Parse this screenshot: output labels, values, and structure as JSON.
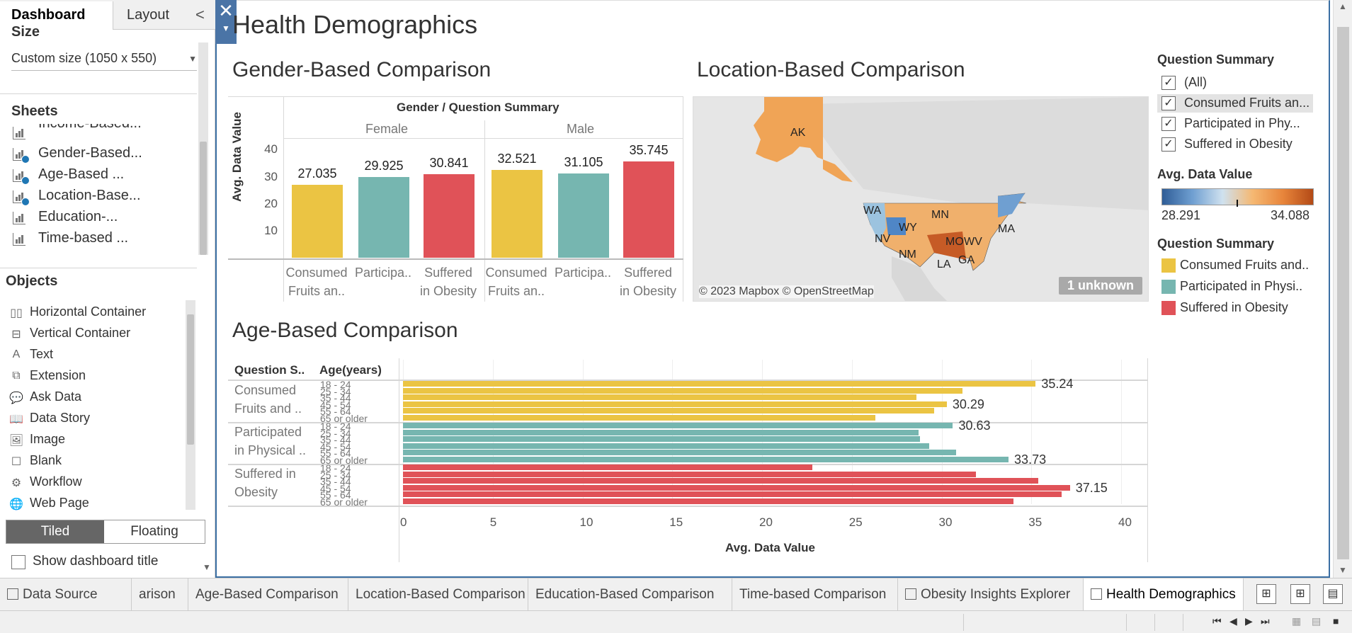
{
  "left_panel": {
    "tabs": {
      "dashboard": "Dashboard",
      "layout": "Layout"
    },
    "collapse_glyph": "<",
    "size": {
      "title": "Size",
      "value": "Custom size (1050 x 550)"
    },
    "sheets": {
      "title": "Sheets",
      "items": [
        {
          "label": "Income-Based..."
        },
        {
          "label": "Gender-Based..."
        },
        {
          "label": "Age-Based ..."
        },
        {
          "label": "Location-Base..."
        },
        {
          "label": "Education-..."
        },
        {
          "label": "Time-based ..."
        }
      ]
    },
    "objects": {
      "title": "Objects",
      "items": [
        {
          "label": "Horizontal Container",
          "icon": "horizontal-container-icon",
          "glyph": "▯▯"
        },
        {
          "label": "Vertical Container",
          "icon": "vertical-container-icon",
          "glyph": "⊟"
        },
        {
          "label": "Text",
          "icon": "text-icon",
          "glyph": "A"
        },
        {
          "label": "Extension",
          "icon": "extension-icon",
          "glyph": "⧉"
        },
        {
          "label": "Ask Data",
          "icon": "ask-data-icon",
          "glyph": "💬"
        },
        {
          "label": "Data Story",
          "icon": "data-story-icon",
          "glyph": "📖"
        },
        {
          "label": "Image",
          "icon": "image-icon",
          "glyph": "🖼"
        },
        {
          "label": "Blank",
          "icon": "blank-icon",
          "glyph": "☐"
        },
        {
          "label": "Workflow",
          "icon": "workflow-icon",
          "glyph": "⚙"
        },
        {
          "label": "Web Page",
          "icon": "web-page-icon",
          "glyph": "🌐"
        }
      ]
    },
    "layout_toggle": {
      "tiled": "Tiled",
      "floating": "Floating"
    },
    "show_title": "Show dashboard title"
  },
  "dashboard": {
    "title": "Health Demographics",
    "gender_heading": "Gender-Based Comparison",
    "location_heading": "Location-Based Comparison",
    "age_heading": "Age-Based Comparison"
  },
  "colors": {
    "yellow": "#EBC443",
    "teal": "#76B6B0",
    "red": "#E05258",
    "accent": "#4A74A6"
  },
  "chart_data": [
    {
      "type": "bar",
      "title": "Gender-Based Comparison",
      "header": "Gender / Question Summary",
      "ylabel": "Avg. Data Value",
      "yticks": [
        10,
        20,
        30,
        40
      ],
      "ylim": [
        0,
        43
      ],
      "groups": [
        "Female",
        "Male"
      ],
      "categories": [
        {
          "line1": "Consumed",
          "line2": "Fruits an.."
        },
        {
          "line1": "Participa..",
          "line2": ""
        },
        {
          "line1": "Suffered",
          "line2": "in Obesity"
        }
      ],
      "values": [
        {
          "group": "Female",
          "category": "Consumed Fruits an..",
          "value": 27.035,
          "label": "27.035",
          "color": "yellow"
        },
        {
          "group": "Female",
          "category": "Participa..",
          "value": 29.925,
          "label": "29.925",
          "color": "teal"
        },
        {
          "group": "Female",
          "category": "Suffered in Obesity",
          "value": 30.841,
          "label": "30.841",
          "color": "red"
        },
        {
          "group": "Male",
          "category": "Consumed Fruits an..",
          "value": 32.521,
          "label": "32.521",
          "color": "yellow"
        },
        {
          "group": "Male",
          "category": "Participa..",
          "value": 31.105,
          "label": "31.105",
          "color": "teal"
        },
        {
          "group": "Male",
          "category": "Suffered in Obesity",
          "value": 35.745,
          "label": "35.745",
          "color": "red"
        }
      ]
    },
    {
      "type": "heatmap",
      "title": "Location-Based Comparison",
      "attribution": "© 2023 Mapbox © OpenStreetMap",
      "unknown_badge": "1 unknown",
      "state_labels": [
        "AK",
        "WA",
        "MN",
        "WY",
        "NV",
        "NM",
        "MO",
        "MA",
        "WV",
        "LA",
        "GA"
      ]
    },
    {
      "type": "bar",
      "orientation": "horizontal",
      "title": "Age-Based Comparison",
      "col_headers": [
        "Question S..",
        "Age(years)"
      ],
      "xlabel": "Avg. Data Value",
      "xticks": [
        0,
        5,
        10,
        15,
        20,
        25,
        30,
        35,
        40
      ],
      "xlim": [
        0,
        40
      ],
      "groups": [
        {
          "line1": "Consumed",
          "line2": "Fruits and ..",
          "color": "yellow",
          "rows": [
            {
              "age": "18 - 24",
              "value": 35.24,
              "label": "35.24"
            },
            {
              "age": "25 - 34",
              "value": 31.15,
              "label": ""
            },
            {
              "age": "35 - 44",
              "value": 28.6,
              "label": ""
            },
            {
              "age": "45 - 54",
              "value": 30.29,
              "label": "30.29"
            },
            {
              "age": "55 - 64",
              "value": 29.6,
              "label": ""
            },
            {
              "age": "65 or older",
              "value": 26.3,
              "label": ""
            }
          ]
        },
        {
          "line1": "Participated",
          "line2": "in Physical ..",
          "color": "teal",
          "rows": [
            {
              "age": "18 - 24",
              "value": 30.63,
              "label": "30.63"
            },
            {
              "age": "25 - 34",
              "value": 28.7,
              "label": ""
            },
            {
              "age": "35 - 44",
              "value": 28.8,
              "label": ""
            },
            {
              "age": "45 - 54",
              "value": 29.3,
              "label": ""
            },
            {
              "age": "55 - 64",
              "value": 30.8,
              "label": ""
            },
            {
              "age": "65 or older",
              "value": 33.73,
              "label": "33.73"
            }
          ]
        },
        {
          "line1": "Suffered in",
          "line2": "Obesity",
          "color": "red",
          "rows": [
            {
              "age": "18 - 24",
              "value": 22.8,
              "label": ""
            },
            {
              "age": "25 - 34",
              "value": 31.9,
              "label": ""
            },
            {
              "age": "35 - 44",
              "value": 35.4,
              "label": ""
            },
            {
              "age": "45 - 54",
              "value": 37.15,
              "label": "37.15"
            },
            {
              "age": "55 - 64",
              "value": 36.7,
              "label": ""
            },
            {
              "age": "65 or older",
              "value": 34.0,
              "label": ""
            }
          ]
        }
      ]
    }
  ],
  "legends": {
    "filter_title": "Question Summary",
    "filter_items": [
      {
        "label": "(All)",
        "checked": true
      },
      {
        "label": "Consumed Fruits an...",
        "checked": true
      },
      {
        "label": "Participated in Phy...",
        "checked": true
      },
      {
        "label": "Suffered in Obesity",
        "checked": true
      }
    ],
    "gradient_title": "Avg. Data Value",
    "gradient_min": "28.291",
    "gradient_max": "34.088",
    "color_title": "Question Summary",
    "color_items": [
      {
        "label": "Consumed Fruits and..",
        "color": "yellow"
      },
      {
        "label": "Participated in Physi..",
        "color": "teal"
      },
      {
        "label": "Suffered in Obesity",
        "color": "red"
      }
    ]
  },
  "sheet_tabs": [
    {
      "label": "Data Source",
      "icon": "data-source-icon"
    },
    {
      "label": "arison",
      "icon": ""
    },
    {
      "label": "Age-Based Comparison",
      "icon": ""
    },
    {
      "label": "Location-Based Comparison",
      "icon": ""
    },
    {
      "label": "Education-Based Comparison",
      "icon": ""
    },
    {
      "label": "Time-based Comparison",
      "icon": ""
    },
    {
      "label": "Obesity Insights Explorer",
      "icon": "dashboard-tab-icon"
    },
    {
      "label": "Health Demographics",
      "icon": "dashboard-tab-icon",
      "active": true
    }
  ]
}
